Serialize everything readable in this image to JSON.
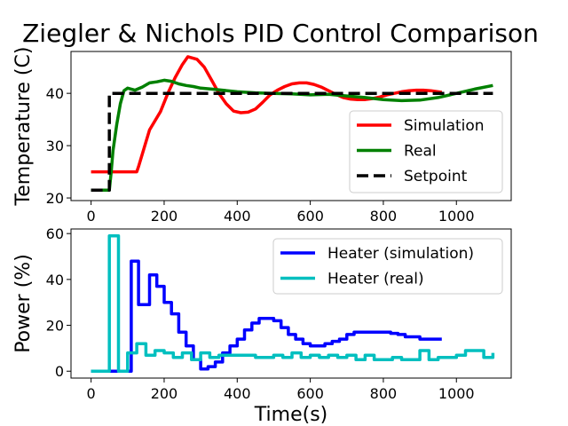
{
  "chart_data": [
    {
      "type": "line",
      "title": "Ziegler & Nichols PID Control Comparison",
      "xlabel": "",
      "ylabel": "Temperature (C)",
      "xlim": [
        -55,
        1150
      ],
      "ylim": [
        19.5,
        48
      ],
      "xticks": [
        0,
        200,
        400,
        600,
        800,
        1000
      ],
      "yticks": [
        20,
        30,
        40
      ],
      "legend_position": "lower-right",
      "series": [
        {
          "name": "Simulation",
          "color": "#ff0000",
          "style": "solid",
          "x": [
            0,
            125,
            130,
            160,
            190,
            210,
            230,
            250,
            265,
            290,
            310,
            330,
            350,
            370,
            390,
            410,
            430,
            450,
            470,
            490,
            510,
            530,
            550,
            570,
            590,
            610,
            630,
            650,
            670,
            690,
            710,
            730,
            750,
            770,
            790,
            810,
            830,
            850,
            870,
            890,
            910,
            930,
            960
          ],
          "y": [
            25,
            25,
            26,
            33,
            36.5,
            40,
            43,
            45.5,
            47,
            46.5,
            45,
            42.5,
            40,
            38,
            36.6,
            36.3,
            36.4,
            37,
            38.3,
            39.7,
            40.6,
            41.3,
            41.8,
            42,
            42,
            41.7,
            41.2,
            40.5,
            39.8,
            39.2,
            38.9,
            38.8,
            38.8,
            39,
            39.3,
            39.7,
            40,
            40.3,
            40.5,
            40.6,
            40.6,
            40.5,
            40.2
          ]
        },
        {
          "name": "Real",
          "color": "#008000",
          "style": "solid",
          "x": [
            0,
            50,
            55,
            60,
            70,
            80,
            90,
            100,
            110,
            120,
            140,
            160,
            180,
            200,
            220,
            240,
            260,
            280,
            300,
            330,
            360,
            400,
            450,
            500,
            550,
            600,
            650,
            700,
            750,
            800,
            850,
            900,
            950,
            1000,
            1050,
            1100
          ],
          "y": [
            21.5,
            21.5,
            25,
            29,
            34,
            38,
            40.5,
            41,
            40.8,
            40.6,
            41.2,
            42,
            42.2,
            42.5,
            42.3,
            41.8,
            41.5,
            41.3,
            41,
            40.8,
            40.6,
            40.3,
            40.1,
            40.0,
            39.9,
            39.7,
            39.8,
            39.5,
            39.2,
            38.8,
            38.6,
            38.7,
            39.2,
            40,
            40.8,
            41.5
          ]
        },
        {
          "name": "Setpoint",
          "color": "#000000",
          "style": "dashed",
          "x": [
            0,
            50,
            50,
            1100
          ],
          "y": [
            21.5,
            21.5,
            40,
            40
          ]
        }
      ]
    },
    {
      "type": "line",
      "title": "",
      "xlabel": "Time(s)",
      "ylabel": "Power (%)",
      "xlim": [
        -55,
        1150
      ],
      "ylim": [
        -3,
        62
      ],
      "xticks": [
        0,
        200,
        400,
        600,
        800,
        1000
      ],
      "yticks": [
        0,
        20,
        40,
        60
      ],
      "legend_position": "top-right",
      "series": [
        {
          "name": "Heater (simulation)",
          "color": "#0000ff",
          "style": "steps",
          "x": [
            0,
            100,
            110,
            130,
            160,
            180,
            200,
            220,
            240,
            260,
            280,
            300,
            320,
            340,
            360,
            380,
            400,
            420,
            440,
            460,
            480,
            500,
            520,
            540,
            560,
            580,
            600,
            620,
            640,
            660,
            680,
            700,
            720,
            740,
            760,
            780,
            800,
            820,
            840,
            860,
            880,
            900,
            920,
            940,
            960
          ],
          "y": [
            0,
            0,
            48,
            29,
            42,
            37,
            30,
            25,
            17,
            11,
            5,
            1,
            2,
            4,
            8,
            11,
            14,
            18,
            21,
            23,
            23,
            22,
            19,
            16,
            14,
            12,
            11,
            11,
            12,
            13,
            14,
            16,
            17,
            17,
            17,
            17,
            17,
            16.5,
            16,
            15,
            15,
            14,
            14,
            14,
            14
          ]
        },
        {
          "name": "Heater (real)",
          "color": "#00bfbf",
          "style": "steps",
          "x": [
            0,
            50,
            75,
            100,
            125,
            150,
            175,
            200,
            225,
            250,
            275,
            300,
            325,
            350,
            375,
            400,
            425,
            450,
            475,
            500,
            525,
            550,
            575,
            600,
            625,
            650,
            675,
            700,
            725,
            750,
            775,
            800,
            825,
            850,
            875,
            900,
            925,
            950,
            975,
            1000,
            1025,
            1050,
            1075,
            1100
          ],
          "y": [
            0,
            59,
            0,
            8,
            12,
            7,
            9,
            8,
            6,
            8,
            5,
            8,
            6,
            7,
            7,
            7,
            7,
            6,
            6,
            7,
            6,
            8,
            6,
            7,
            6,
            7,
            6,
            7,
            5,
            7,
            5,
            5,
            6,
            5,
            5,
            9,
            5,
            6,
            6,
            7,
            9,
            9,
            6,
            8
          ]
        }
      ]
    }
  ]
}
